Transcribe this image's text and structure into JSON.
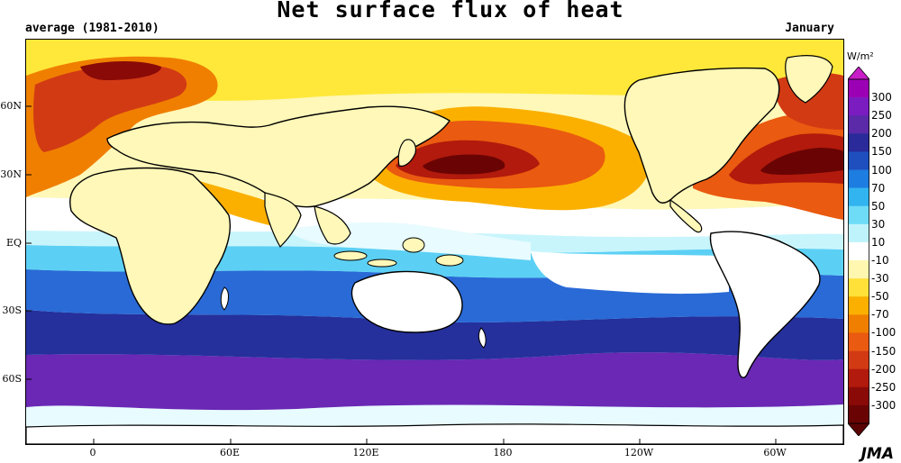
{
  "title": "Net surface flux of heat",
  "subtitle_left": "average (1981-2010)",
  "subtitle_right": "January",
  "credit": "JMA",
  "unit": "W/m²",
  "lat_labels": [
    "60N",
    "30N",
    "EQ",
    "30S",
    "60S"
  ],
  "lon_labels": [
    "0",
    "60E",
    "120E",
    "180",
    "120W",
    "60W"
  ],
  "colorbar": {
    "levels": [
      "300",
      "250",
      "200",
      "150",
      "100",
      "70",
      "50",
      "30",
      "10",
      "-10",
      "-30",
      "-50",
      "-70",
      "-100",
      "-150",
      "-200",
      "-250",
      "-300"
    ],
    "colors": [
      "#9c00b4",
      "#7a1cc0",
      "#5a2aa8",
      "#2a2a9a",
      "#1f4fbf",
      "#1e7de0",
      "#32b4f0",
      "#6edcf7",
      "#bff3fb",
      "#ffffff",
      "#fff7b0",
      "#ffe13a",
      "#fbb000",
      "#f07f00",
      "#ea5a10",
      "#d23a14",
      "#b11a0c",
      "#8a0a08",
      "#6a0404"
    ],
    "over_color": "#c81ec8",
    "under_color": "#5a0202"
  }
}
